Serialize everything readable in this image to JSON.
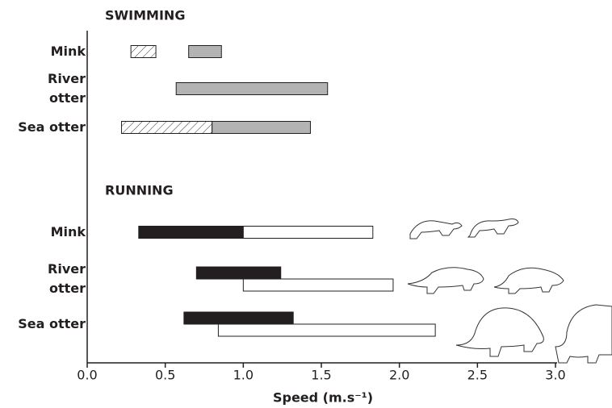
{
  "chart_data": {
    "type": "range-bar",
    "xlabel": "Speed (m.s⁻¹)",
    "xlim": [
      0,
      3
    ],
    "xticks": [
      {
        "value": 0,
        "label": "0.0"
      },
      0.5,
      {
        "value": 1,
        "label": "1.0"
      },
      1.5,
      {
        "value": 2,
        "label": "2.0"
      },
      2.5,
      {
        "value": 3,
        "label": "3.0"
      }
    ],
    "sections": [
      {
        "title": "SWIMMING",
        "rows": [
          {
            "label": "Mink",
            "bars": [
              {
                "start": 0.28,
                "end": 0.44,
                "style": "hatched"
              },
              {
                "start": 0.65,
                "end": 0.86,
                "style": "gray"
              }
            ]
          },
          {
            "label": "River\notter",
            "bars": [
              {
                "start": 0.57,
                "end": 1.54,
                "style": "gray"
              }
            ]
          },
          {
            "label": "Sea otter",
            "bars": [
              {
                "start": 0.22,
                "end": 0.8,
                "style": "hatched"
              },
              {
                "start": 0.8,
                "end": 1.43,
                "style": "gray"
              }
            ]
          }
        ]
      },
      {
        "title": "RUNNING",
        "rows": [
          {
            "label": "Mink",
            "bars": [
              {
                "start": 0.33,
                "end": 1.0,
                "style": "black"
              },
              {
                "start": 1.0,
                "end": 1.83,
                "style": "white"
              }
            ]
          },
          {
            "label": "River\notter",
            "bars": [
              {
                "start": 0.7,
                "end": 1.24,
                "style": "black"
              },
              {
                "start": 1.0,
                "end": 1.96,
                "style": "white"
              }
            ]
          },
          {
            "label": "Sea otter",
            "bars": [
              {
                "start": 0.62,
                "end": 1.32,
                "style": "black"
              },
              {
                "start": 0.84,
                "end": 2.23,
                "style": "white"
              }
            ]
          }
        ]
      }
    ]
  }
}
